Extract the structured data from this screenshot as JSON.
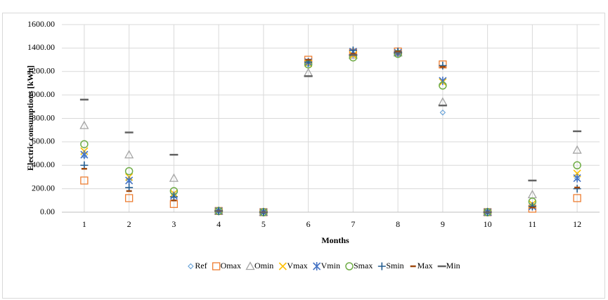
{
  "chart_data": {
    "type": "scatter",
    "x_label": "Months",
    "y_label": "Electric consumptions [kWh]",
    "categories": [
      "1",
      "2",
      "3",
      "4",
      "5",
      "6",
      "7",
      "8",
      "9",
      "10",
      "11",
      "12"
    ],
    "ylim": [
      0,
      1600
    ],
    "yticks": [
      {
        "value": 0,
        "label": "0.00"
      },
      {
        "value": 200,
        "label": "200.00"
      },
      {
        "value": 400,
        "label": "400.00"
      },
      {
        "value": 600,
        "label": "600.00"
      },
      {
        "value": 800,
        "label": "800.00"
      },
      {
        "value": 1000,
        "label": "1000.00"
      },
      {
        "value": 1200,
        "label": "1200.00"
      },
      {
        "value": 1400,
        "label": "1400.00"
      },
      {
        "value": 1600,
        "label": "1600.00"
      }
    ],
    "grid": true,
    "legend": "bottom",
    "series": [
      {
        "name": "Ref",
        "color": "#5b9bd5",
        "marker": "diamond",
        "values": [
          480,
          270,
          150,
          10,
          0,
          1260,
          1340,
          1360,
          850,
          0,
          60,
          290
        ]
      },
      {
        "name": "Omax",
        "color": "#ed7d31",
        "marker": "square",
        "values": [
          270,
          120,
          70,
          10,
          0,
          1300,
          1360,
          1370,
          1260,
          0,
          30,
          120
        ]
      },
      {
        "name": "Omin",
        "color": "#a5a5a5",
        "marker": "triangle",
        "values": [
          740,
          490,
          290,
          10,
          0,
          1190,
          1340,
          1360,
          940,
          0,
          150,
          530
        ]
      },
      {
        "name": "Vmax",
        "color": "#ffc000",
        "marker": "x",
        "values": [
          520,
          300,
          160,
          10,
          0,
          1270,
          1340,
          1360,
          1110,
          0,
          70,
          330
        ]
      },
      {
        "name": "Vmin",
        "color": "#4472c4",
        "marker": "star",
        "values": [
          490,
          270,
          140,
          10,
          0,
          1280,
          1370,
          1360,
          1120,
          0,
          50,
          290
        ]
      },
      {
        "name": "Smax",
        "color": "#70ad47",
        "marker": "circle",
        "values": [
          580,
          350,
          180,
          10,
          0,
          1260,
          1320,
          1350,
          1080,
          0,
          90,
          400
        ]
      },
      {
        "name": "Smin",
        "color": "#255e91",
        "marker": "plus",
        "values": [
          400,
          210,
          130,
          10,
          0,
          1280,
          1380,
          1370,
          1250,
          0,
          50,
          200
        ]
      },
      {
        "name": "Max",
        "color": "#9e480e",
        "marker": "dash",
        "values": [
          370,
          180,
          100,
          10,
          0,
          1300,
          1350,
          1370,
          1240,
          0,
          40,
          210
        ]
      },
      {
        "name": "Min",
        "color": "#636363",
        "marker": "longdash",
        "values": [
          960,
          680,
          490,
          10,
          0,
          1160,
          1340,
          1360,
          910,
          0,
          270,
          690
        ]
      }
    ]
  }
}
